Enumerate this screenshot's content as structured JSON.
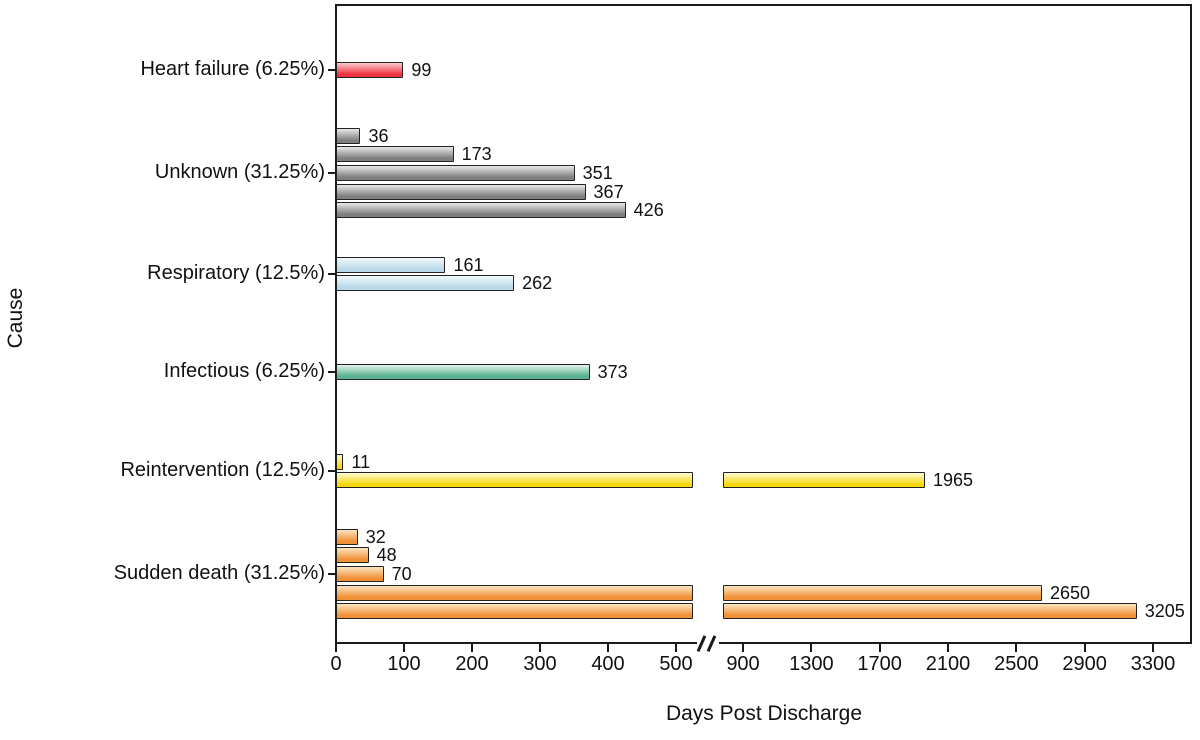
{
  "chart_data": {
    "type": "bar",
    "orientation": "horizontal",
    "xlabel": "Days Post Discharge",
    "ylabel": "Cause",
    "x_axis": {
      "left_segment_ticks": [
        0,
        100,
        200,
        300,
        400,
        500
      ],
      "right_segment_ticks": [
        900,
        1300,
        1700,
        2100,
        2500,
        2900,
        3300
      ],
      "break_between": [
        500,
        900
      ],
      "grid": false
    },
    "groups": [
      {
        "label": "Heart failure (6.25%)",
        "color": "red",
        "values": [
          99
        ]
      },
      {
        "label": "Unknown (31.25%)",
        "color": "gray",
        "values": [
          36,
          173,
          351,
          367,
          426
        ]
      },
      {
        "label": "Respiratory (12.5%)",
        "color": "blue",
        "values": [
          161,
          262
        ]
      },
      {
        "label": "Infectious (6.25%)",
        "color": "green",
        "values": [
          373
        ]
      },
      {
        "label": "Reintervention (12.5%)",
        "color": "yellow",
        "values": [
          11,
          1965
        ]
      },
      {
        "label": "Sudden death (31.25%)",
        "color": "orange",
        "values": [
          32,
          48,
          70,
          2650,
          3205
        ]
      }
    ],
    "palette": {
      "red": {
        "light": "#f9c6c6",
        "main": "#ee3240"
      },
      "gray": {
        "light": "#e4e4e4",
        "main": "#7f7f7f"
      },
      "blue": {
        "light": "#f0f8fb",
        "main": "#b7d9e8"
      },
      "green": {
        "light": "#dcf0e7",
        "main": "#58b190"
      },
      "yellow": {
        "light": "#fdfacb",
        "main": "#f6d70e"
      },
      "orange": {
        "light": "#fbe2bc",
        "main": "#f09138"
      }
    },
    "bar_border_color": "#222222",
    "axis_color": "#1a1a1a"
  }
}
